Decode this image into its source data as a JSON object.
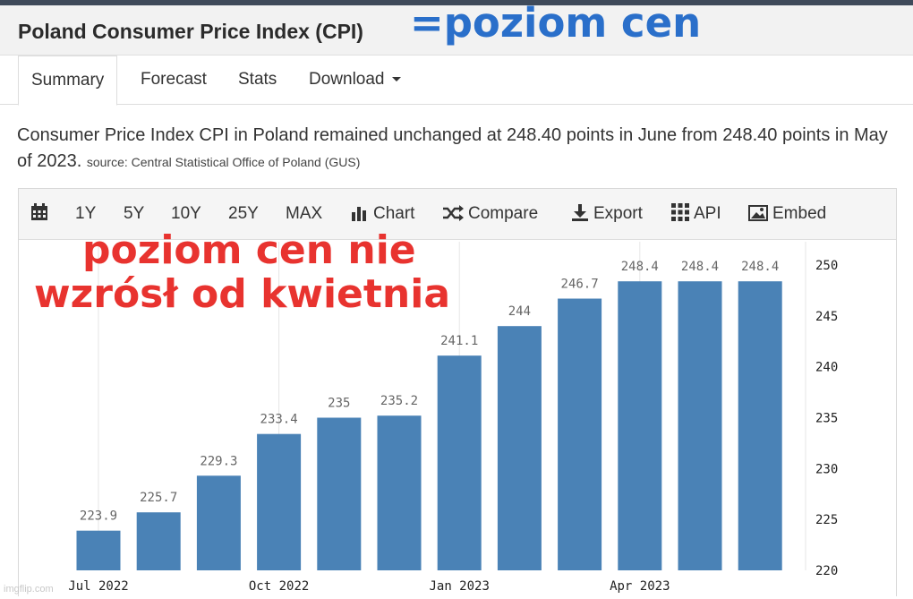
{
  "page_title": "Poland Consumer Price Index (CPI)",
  "overlay_top": "=poziom cen",
  "overlay_chart_line1": "poziom cen nie",
  "overlay_chart_line2": "wzrósł od kwietnia",
  "tabs": [
    {
      "label": "Summary",
      "active": true
    },
    {
      "label": "Forecast"
    },
    {
      "label": "Stats"
    },
    {
      "label": "Download"
    }
  ],
  "description": "Consumer Price Index CPI in Poland remained unchanged at 248.40 points in June from 248.40 points in May of 2023.",
  "source": "source: Central Statistical Office of Poland (GUS)",
  "toolbar": {
    "range_buttons": [
      "1Y",
      "5Y",
      "10Y",
      "25Y",
      "MAX"
    ],
    "chart": "Chart",
    "compare": "Compare",
    "export": "Export",
    "api": "API",
    "embed": "Embed"
  },
  "watermark": "imgflip.com",
  "colors": {
    "bar": "#4a82b6",
    "overlay_blue": "#2a6fca",
    "overlay_red": "#e8332f"
  },
  "chart_data": {
    "type": "bar",
    "x": [
      "2022-07",
      "2022-08",
      "2022-09",
      "2022-10",
      "2022-11",
      "2022-12",
      "2023-01",
      "2023-02",
      "2023-03",
      "2023-04",
      "2023-05",
      "2023-06"
    ],
    "values": [
      223.9,
      225.7,
      229.3,
      233.4,
      235,
      235.2,
      241.1,
      244,
      246.7,
      248.4,
      248.4,
      248.4
    ],
    "data_labels": [
      "223.9",
      "225.7",
      "229.3",
      "233.4",
      "235",
      "235.2",
      "241.1",
      "244",
      "246.7",
      "248.4",
      "248.4",
      "248.4"
    ],
    "x_tick_labels": [
      {
        "index": 0,
        "label": "Jul 2022"
      },
      {
        "index": 3,
        "label": "Oct 2022"
      },
      {
        "index": 6,
        "label": "Jan 2023"
      },
      {
        "index": 9,
        "label": "Apr 2023"
      }
    ],
    "y_ticks": [
      220,
      225,
      230,
      235,
      240,
      245,
      250
    ],
    "ylim": [
      220,
      250
    ],
    "y_axis_side": "right",
    "grid": "vertical"
  }
}
